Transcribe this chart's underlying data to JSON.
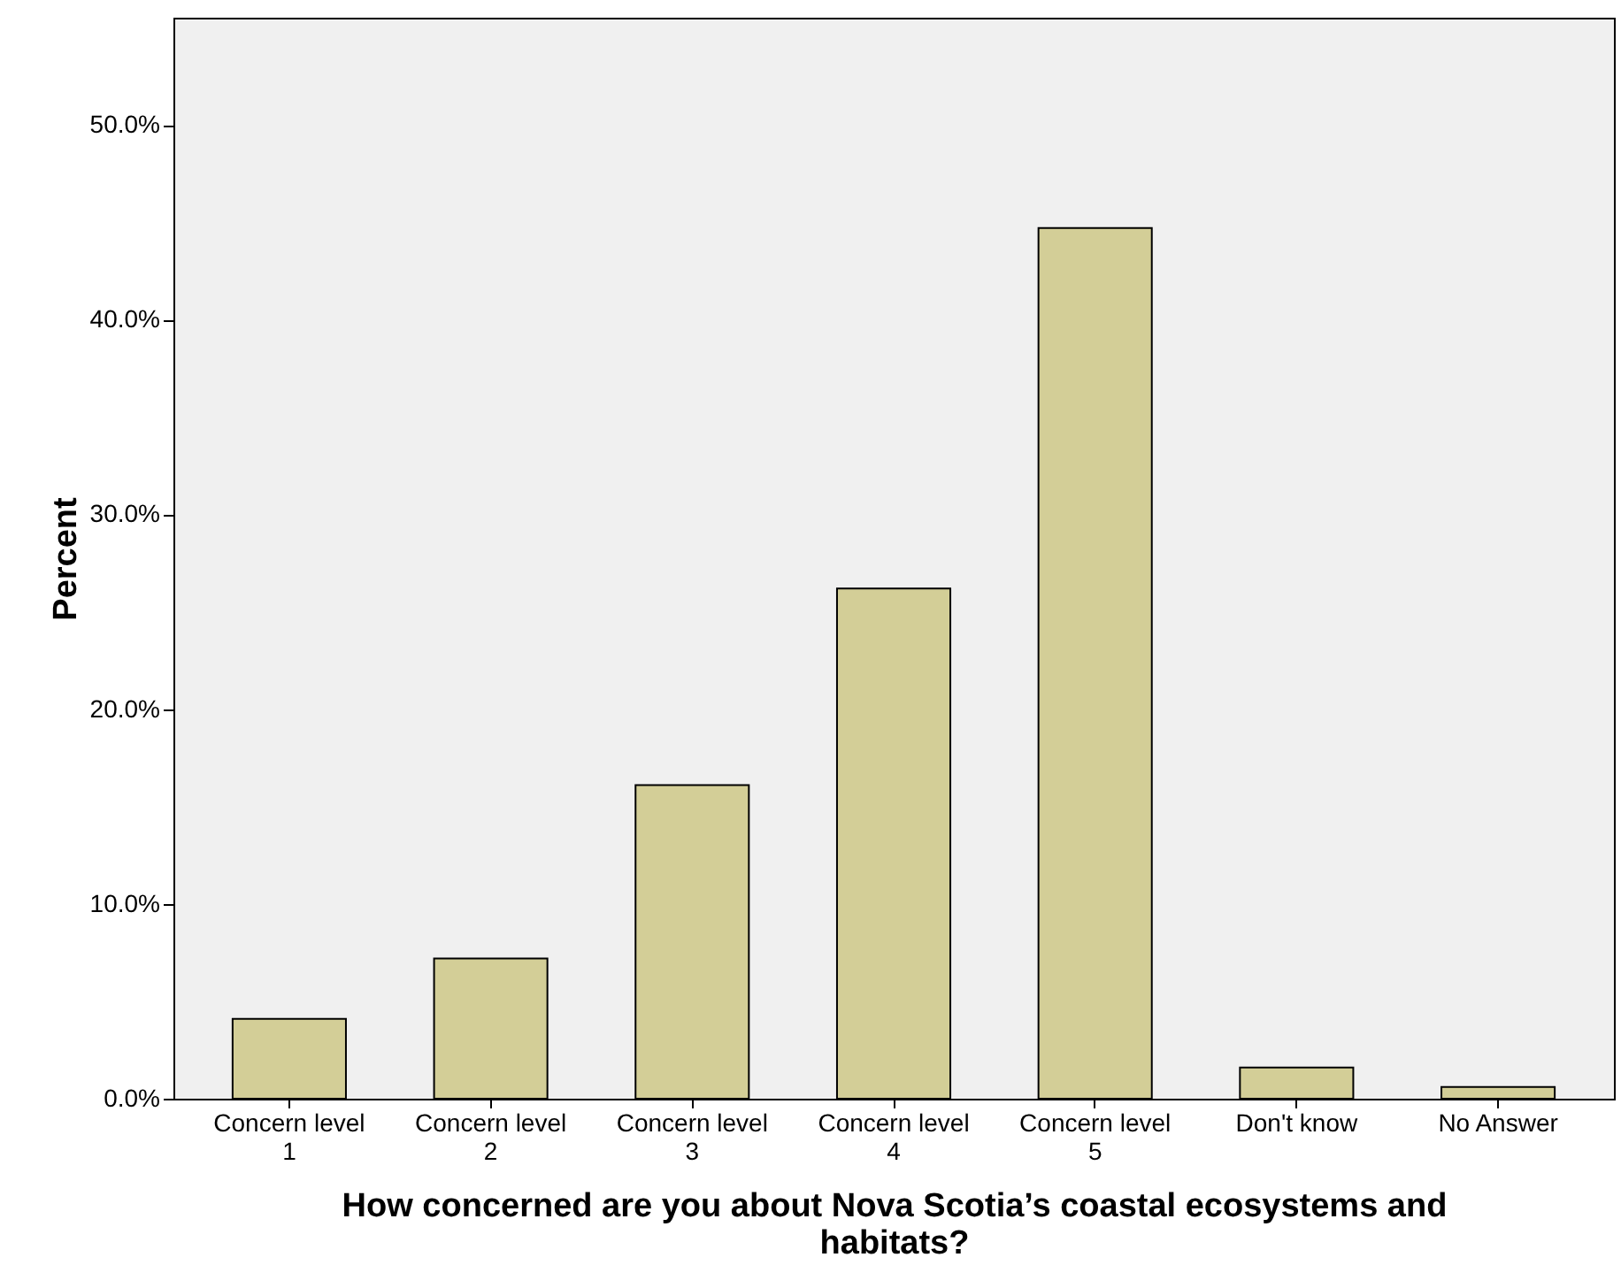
{
  "chart_data": {
    "type": "bar",
    "xlabel": "How concerned are you about Nova Scotia’s coastal ecosystems and habitats?",
    "ylabel": "Percent",
    "categories": [
      "Concern level 1",
      "Concern level 2",
      "Concern level 3",
      "Concern level 4",
      "Concern level 5",
      "Don't know",
      "No Answer"
    ],
    "values": [
      4.1,
      7.2,
      16.1,
      26.2,
      44.7,
      1.6,
      0.6
    ],
    "color": "#d3ce97",
    "ylim": [
      0,
      55.5
    ],
    "yticks": [
      {
        "value": 0,
        "label": "0.0%"
      },
      {
        "value": 10,
        "label": "10.0%"
      },
      {
        "value": 20,
        "label": "20.0%"
      },
      {
        "value": 30,
        "label": "30.0%"
      },
      {
        "value": 40,
        "label": "40.0%"
      },
      {
        "value": 50,
        "label": "50.0%"
      }
    ],
    "grid": false
  }
}
